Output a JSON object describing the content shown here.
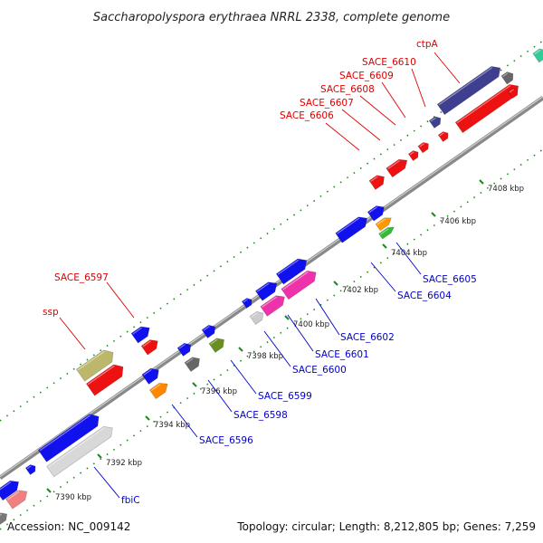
{
  "title": "Saccharopolyspora erythraea NRRL 2338, complete genome",
  "accession_text": "Accession: NC_009142",
  "summary_text": "Topology: circular; Length: 8,212,805 bp; Genes: 7,259",
  "colors": {
    "backbone": "#888888",
    "tick_green": "#1a8a1a",
    "red_label": "#dd0000",
    "blue_label": "#0000cc"
  },
  "ticks": [
    {
      "label": "7390 kbp"
    },
    {
      "label": "7392 kbp"
    },
    {
      "label": "7394 kbp"
    },
    {
      "label": "7396 kbp"
    },
    {
      "label": "7398 kbp"
    },
    {
      "label": "7400 kbp"
    },
    {
      "label": "7402 kbp"
    },
    {
      "label": "7404 kbp"
    },
    {
      "label": "7406 kbp"
    },
    {
      "label": "7408 kbp"
    }
  ],
  "labels_top": [
    {
      "text": "ctpA"
    },
    {
      "text": "SACE_6610"
    },
    {
      "text": "SACE_6609"
    },
    {
      "text": "SACE_6608"
    },
    {
      "text": "SACE_6607"
    },
    {
      "text": "SACE_6606"
    },
    {
      "text": "SACE_6597"
    },
    {
      "text": "ssp"
    }
  ],
  "labels_bottom": [
    {
      "text": "SACE_6605"
    },
    {
      "text": "SACE_6604"
    },
    {
      "text": "SACE_6602"
    },
    {
      "text": "SACE_6601"
    },
    {
      "text": "SACE_6600"
    },
    {
      "text": "SACE_6599"
    },
    {
      "text": "SACE_6598"
    },
    {
      "text": "SACE_6596"
    },
    {
      "text": "fbiC"
    }
  ]
}
